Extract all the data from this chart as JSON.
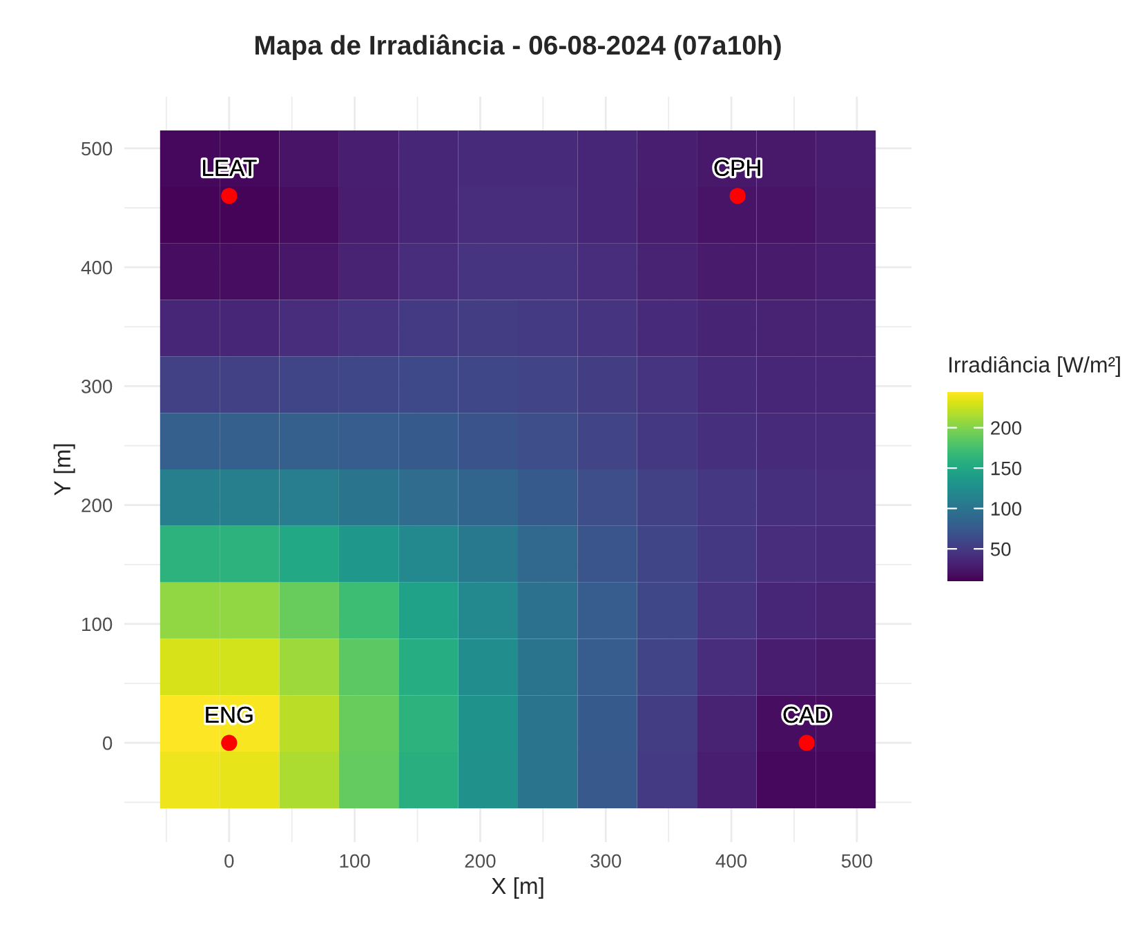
{
  "chart_data": {
    "type": "heatmap",
    "title": "Mapa de Irradiância - 06-08-2024 (07a10h)",
    "xlabel": "X [m]",
    "ylabel": "Y [m]",
    "clabel": "Irradiância [W/m²]",
    "x": [
      -31.25,
      16.25,
      63.75,
      111.25,
      158.75,
      206.25,
      253.75,
      301.25,
      348.75,
      396.25,
      443.75,
      491.25
    ],
    "y": [
      491.25,
      443.75,
      396.25,
      348.75,
      301.25,
      253.75,
      206.25,
      158.75,
      111.25,
      63.75,
      16.25,
      -31.25
    ],
    "cells": [
      [
        15,
        15,
        22,
        30,
        35,
        38,
        38,
        35,
        30,
        25,
        25,
        28
      ],
      [
        12,
        12,
        18,
        28,
        35,
        40,
        40,
        35,
        28,
        22,
        22,
        27
      ],
      [
        18,
        18,
        24,
        32,
        40,
        45,
        45,
        40,
        32,
        27,
        27,
        30
      ],
      [
        35,
        35,
        40,
        45,
        50,
        52,
        50,
        45,
        38,
        33,
        32,
        33
      ],
      [
        55,
        55,
        58,
        60,
        62,
        60,
        57,
        52,
        45,
        38,
        35,
        35
      ],
      [
        80,
        80,
        80,
        78,
        75,
        70,
        65,
        57,
        48,
        42,
        38,
        38
      ],
      [
        110,
        110,
        108,
        100,
        92,
        85,
        75,
        65,
        55,
        47,
        42,
        40
      ],
      [
        160,
        160,
        150,
        135,
        120,
        105,
        88,
        72,
        58,
        48,
        40,
        38
      ],
      [
        205,
        205,
        190,
        170,
        145,
        120,
        98,
        78,
        60,
        45,
        35,
        32
      ],
      [
        230,
        228,
        210,
        185,
        155,
        125,
        100,
        78,
        57,
        40,
        28,
        25
      ],
      [
        244,
        242,
        220,
        190,
        160,
        128,
        100,
        75,
        52,
        32,
        18,
        18
      ],
      [
        238,
        235,
        215,
        188,
        158,
        127,
        100,
        74,
        50,
        30,
        15,
        15
      ]
    ],
    "clim": [
      10,
      244
    ],
    "cticks": [
      50,
      100,
      150,
      200
    ],
    "xlim": [
      -83.5,
      543.5
    ],
    "ylim": [
      -83.5,
      543.5
    ],
    "xticks": [
      0,
      100,
      200,
      300,
      400,
      500
    ],
    "yticks": [
      0,
      100,
      200,
      300,
      400,
      500
    ],
    "grid": true,
    "series": [
      {
        "type": "scatter",
        "x": [
          0,
          405,
          0,
          460
        ],
        "values": [
          460,
          460,
          0,
          0
        ],
        "color": "#ff0000",
        "marker": "circle"
      }
    ],
    "annotations": [
      {
        "text": "LEAT",
        "x": 0,
        "y": 460
      },
      {
        "text": "CPH",
        "x": 405,
        "y": 460
      },
      {
        "text": "ENG",
        "x": 0,
        "y": 0
      },
      {
        "text": "CAD",
        "x": 460,
        "y": 0
      }
    ]
  }
}
